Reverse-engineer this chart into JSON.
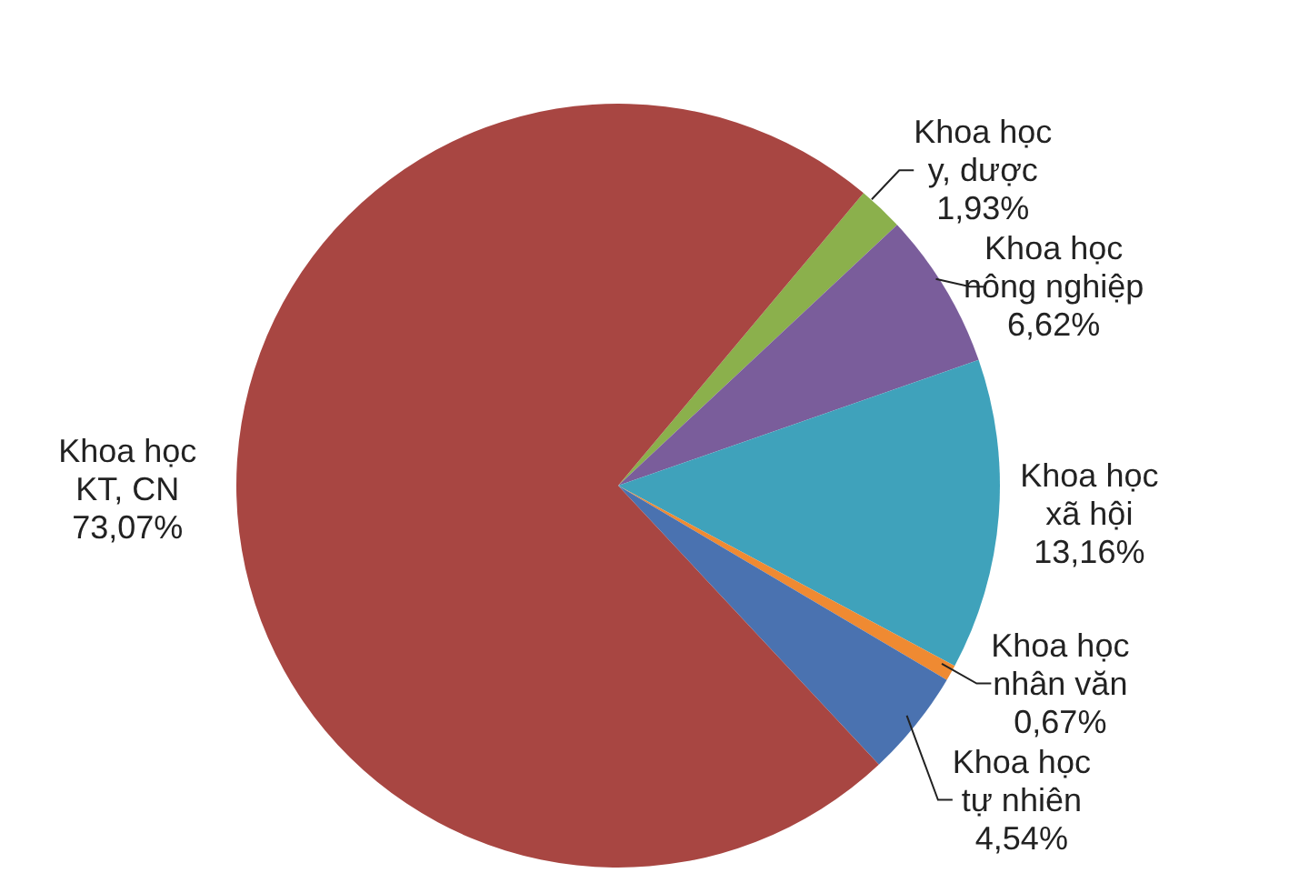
{
  "chart_data": {
    "type": "pie",
    "categories": [
      "Khoa học y, dược",
      "Khoa học nông nghiệp",
      "Khoa học xã hội",
      "Khoa học nhân văn",
      "Khoa học tự nhiên",
      "Khoa học KT, CN"
    ],
    "values": [
      1.93,
      6.62,
      13.16,
      0.67,
      4.54,
      73.07
    ],
    "colors": [
      "#8bb04c",
      "#7a5d9b",
      "#3fa2bb",
      "#ef8a32",
      "#4a72b0",
      "#a84642"
    ],
    "value_labels": [
      "1,93%",
      "6,62%",
      "13,16%",
      "0,67%",
      "4,54%",
      "73,07%"
    ],
    "legend": false
  }
}
